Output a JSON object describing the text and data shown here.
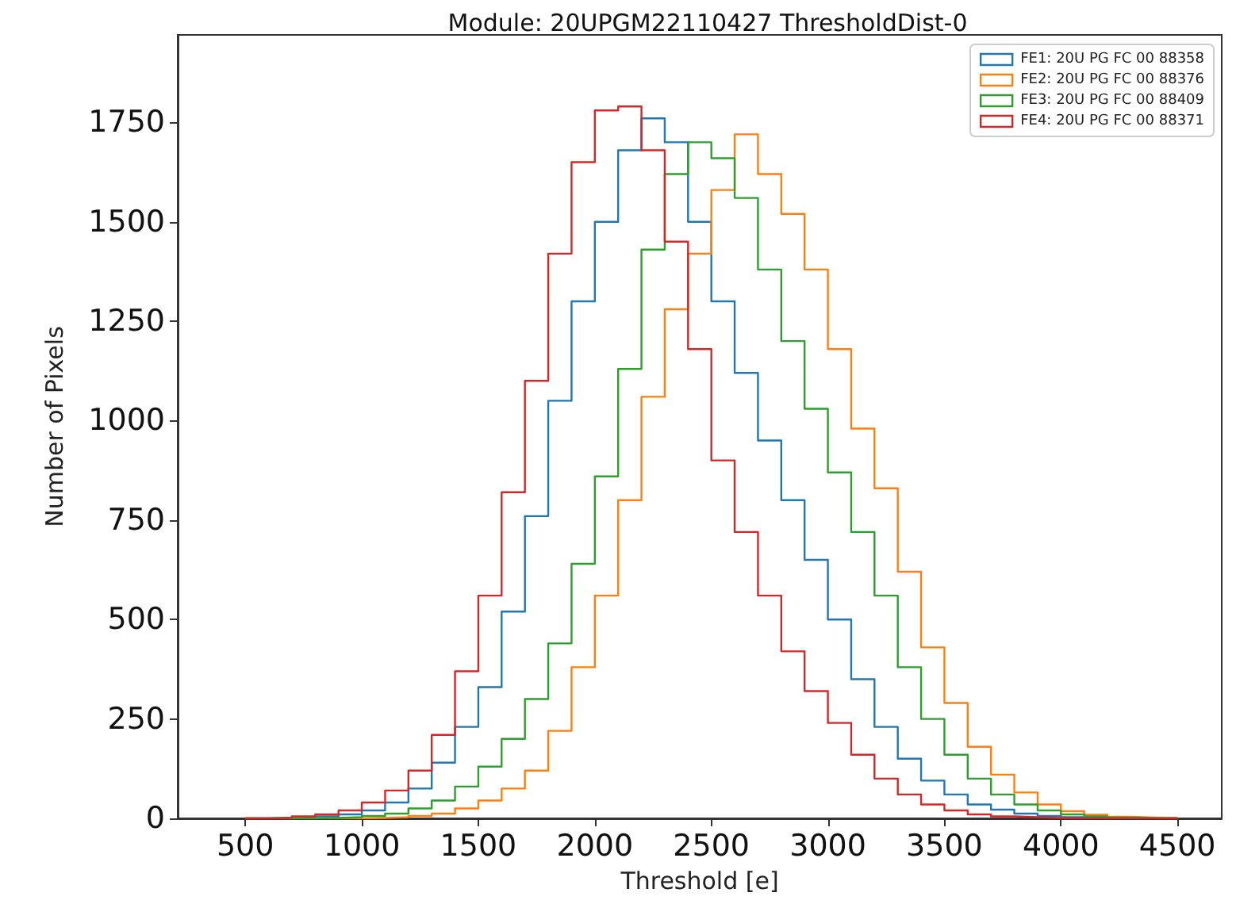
{
  "chart_data": {
    "type": "histogram",
    "title": "Module: 20UPGM22110427 ThresholdDist-0",
    "xlabel": "Threshold [e]",
    "ylabel": "Number of Pixels",
    "bins": [
      500,
      600,
      700,
      800,
      900,
      1000,
      1100,
      1200,
      1300,
      1400,
      1500,
      1600,
      1700,
      1800,
      1900,
      2000,
      2100,
      2200,
      2300,
      2400,
      2500,
      2600,
      2700,
      2800,
      2900,
      3000,
      3100,
      3200,
      3300,
      3400,
      3500,
      3600,
      3700,
      3800,
      3900,
      4000,
      4100,
      4200,
      4300,
      4400,
      4500
    ],
    "series": [
      {
        "name": "FE1: 20U PG FC 00 88358",
        "color": "#1f77b4",
        "values": [
          0,
          0,
          2,
          5,
          10,
          20,
          40,
          75,
          140,
          230,
          330,
          520,
          760,
          1050,
          1300,
          1500,
          1680,
          1760,
          1700,
          1500,
          1300,
          1120,
          950,
          800,
          650,
          500,
          350,
          230,
          150,
          95,
          60,
          35,
          22,
          12,
          6,
          3,
          1,
          0,
          0,
          0
        ]
      },
      {
        "name": "FE2: 20U PG FC 00 88376",
        "color": "#ff7f0e",
        "values": [
          0,
          0,
          0,
          0,
          0,
          1,
          3,
          6,
          12,
          25,
          45,
          75,
          120,
          220,
          380,
          560,
          800,
          1060,
          1280,
          1420,
          1580,
          1720,
          1620,
          1520,
          1380,
          1180,
          980,
          830,
          620,
          430,
          290,
          180,
          110,
          65,
          35,
          18,
          9,
          4,
          2,
          1
        ]
      },
      {
        "name": "FE3: 20U PG FC 00 88409",
        "color": "#2ca02c",
        "values": [
          0,
          0,
          0,
          1,
          3,
          6,
          12,
          25,
          45,
          80,
          130,
          200,
          300,
          440,
          640,
          860,
          1130,
          1430,
          1620,
          1700,
          1660,
          1560,
          1380,
          1200,
          1030,
          870,
          720,
          560,
          380,
          250,
          160,
          100,
          60,
          35,
          20,
          10,
          5,
          2,
          1,
          0
        ]
      },
      {
        "name": "FE4: 20U PG FC 00 88371",
        "color": "#d62728",
        "values": [
          0,
          2,
          5,
          10,
          20,
          40,
          70,
          120,
          210,
          370,
          560,
          820,
          1100,
          1420,
          1650,
          1780,
          1790,
          1680,
          1450,
          1180,
          900,
          720,
          560,
          420,
          320,
          240,
          160,
          100,
          60,
          35,
          20,
          10,
          5,
          3,
          1,
          0,
          0,
          0,
          0,
          0
        ]
      }
    ],
    "xlim": [
      210,
      4690
    ],
    "xticks": [
      500,
      1000,
      1500,
      2000,
      2500,
      3000,
      3500,
      4000,
      4500
    ],
    "ylim": [
      0,
      1970
    ],
    "yticks": [
      0,
      250,
      500,
      750,
      1000,
      1250,
      1500,
      1750
    ],
    "legend": "top right",
    "grid": false
  }
}
